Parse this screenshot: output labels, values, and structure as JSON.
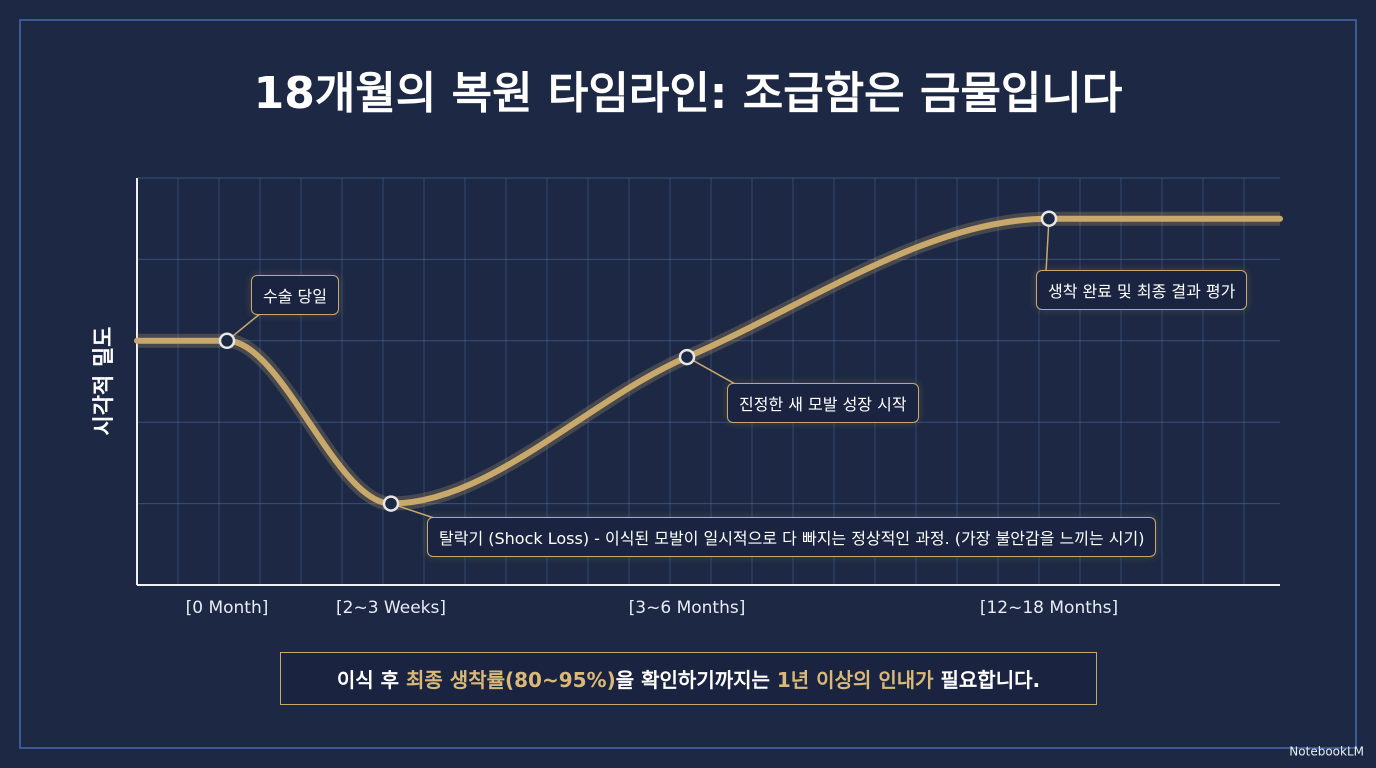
{
  "chart_data": {
    "type": "line",
    "title": "18개월의 복원 타임라인: 조급함은 금물입니다",
    "y_label": "시각적 밀도",
    "categories": [
      null,
      "[0 Month]",
      "[2~3 Weeks]",
      "[3~6 Months]",
      "[12~18 Months]",
      null
    ],
    "values": [
      3,
      3,
      1,
      2.8,
      4.5,
      4.5
    ],
    "color": "#c9a96b",
    "ylim": [
      0,
      5
    ],
    "annotations": [
      {
        "text": "수술 당일"
      },
      {
        "text": "탈락기 (Shock Loss) - 이식된 모발이 일시적으로 다 빠지는 정상적인 과정. (가장 불안감을 느끼는 시기)"
      },
      {
        "text": "진정한 새 모발 성장 시작"
      },
      {
        "text": "생착 완료 및 최종 결과 평가"
      }
    ]
  },
  "footer": {
    "parts": [
      {
        "text": "이식 후 ",
        "highlight": false
      },
      {
        "text": "최종 생착률(80~95%)",
        "highlight": true
      },
      {
        "text": "을 확인하기까지는 ",
        "highlight": false
      },
      {
        "text": "1년 이상의 인내가",
        "highlight": true
      },
      {
        "text": " 필요합니다.",
        "highlight": false
      }
    ]
  },
  "watermark": "NotebookLM"
}
